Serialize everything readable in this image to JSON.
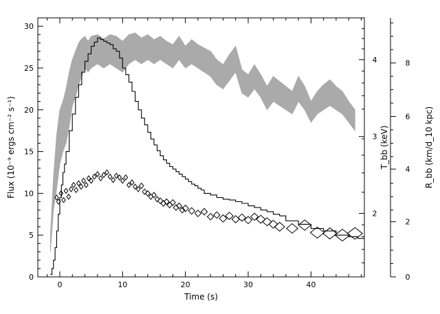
{
  "chart_data": {
    "type": "line",
    "title": "",
    "xlabel": "Time (s)",
    "ylabel": "Flux (10⁻⁹ ergs cm⁻² s⁻¹)",
    "ylabel_right_T": "T_bb (keV)",
    "ylabel_right_R": "R_bb (km/d_10 kpc)",
    "xlim": [
      -3.5,
      48.5
    ],
    "ylim": [
      0,
      31
    ],
    "x_ticks": [
      0,
      10,
      20,
      30,
      40
    ],
    "x_tick_labels": [
      "0",
      "10",
      "20",
      "30",
      "40"
    ],
    "y_ticks": [
      0,
      5,
      10,
      15,
      20,
      25,
      30
    ],
    "y_tick_labels": [
      "0",
      "5",
      "10",
      "15",
      "20",
      "25",
      "30"
    ],
    "T_axis": {
      "scale": "log",
      "ticks_keV": [
        2,
        3,
        4
      ],
      "tick_labels": [
        "2",
        "3",
        "4"
      ],
      "flux_at_tick": [
        7.6,
        16.8,
        26.0
      ]
    },
    "R_axis": {
      "ticks": [
        0,
        2,
        4,
        6,
        8
      ],
      "tick_labels": [
        "0",
        "2",
        "4",
        "6",
        "8"
      ],
      "flux_at_tick": [
        0,
        6.6,
        12.9,
        19.2,
        25.6
      ]
    },
    "series": [
      {
        "style": "histogram",
        "x": [
          -1.5,
          -1.25,
          -1.0,
          -0.75,
          -0.5,
          -0.25,
          0.0,
          0.25,
          0.5,
          0.75,
          1.0,
          1.5,
          2.0,
          2.5,
          3.0,
          3.5,
          4.0,
          4.5,
          5.0,
          5.5,
          6.0,
          6.5,
          7.0,
          7.5,
          8.0,
          8.5,
          9.0,
          9.5,
          10.0,
          10.5,
          11.0,
          11.5,
          12.0,
          12.5,
          13.0,
          13.5,
          14.0,
          14.5,
          15.0,
          15.5,
          16.0,
          16.5,
          17.0,
          17.5,
          18.0,
          18.5,
          19.0,
          19.5,
          20.0,
          20.5,
          21.0,
          21.5,
          22.0,
          22.5,
          23.0,
          24.0,
          25.0,
          26.0,
          27.0,
          28.0,
          29.0,
          30.0,
          31.0,
          32.0,
          33.0,
          34.0,
          35.0,
          36.0,
          38.0,
          40.0,
          42.0,
          44.0,
          46.0,
          47.5
        ],
        "y": [
          0.3,
          1.0,
          2.0,
          3.5,
          5.5,
          7.5,
          9.5,
          11.0,
          12.5,
          13.5,
          15.0,
          17.5,
          19.5,
          21.5,
          23.0,
          24.5,
          25.8,
          26.7,
          27.6,
          28.1,
          28.6,
          28.4,
          28.2,
          28.0,
          27.8,
          27.3,
          27.0,
          26.2,
          25.0,
          24.2,
          23.3,
          22.2,
          21.0,
          20.0,
          19.0,
          18.2,
          17.3,
          16.5,
          15.8,
          15.1,
          14.5,
          14.0,
          13.6,
          13.2,
          12.9,
          12.6,
          12.3,
          12.0,
          11.7,
          11.4,
          11.1,
          10.9,
          10.6,
          10.4,
          10.0,
          9.8,
          9.5,
          9.3,
          9.2,
          9.0,
          8.8,
          8.5,
          8.3,
          8.0,
          7.8,
          7.5,
          7.3,
          6.7,
          6.3,
          5.8,
          5.5,
          5.0,
          4.8,
          4.6
        ]
      },
      {
        "style": "band",
        "x": [
          -1.5,
          -1.0,
          -0.5,
          0.0,
          0.5,
          1.0,
          1.5,
          2.0,
          2.5,
          3.0,
          3.5,
          4.0,
          4.5,
          5.0,
          6.0,
          7.0,
          8.0,
          9.0,
          10.0,
          11.0,
          12.0,
          13.0,
          14.0,
          15.0,
          16.0,
          17.0,
          18.0,
          19.0,
          20.0,
          21.0,
          22.0,
          23.0,
          24.0,
          25.0,
          26.0,
          27.0,
          28.0,
          29.0,
          30.0,
          31.0,
          32.0,
          33.0,
          34.0,
          35.0,
          36.0,
          37.0,
          38.0,
          39.0,
          40.0,
          41.0,
          42.0,
          43.0,
          44.0,
          45.0,
          46.0,
          47.0
        ],
        "y_low": [
          3.0,
          8.0,
          10.5,
          13.5,
          15.0,
          16.0,
          18.0,
          20.5,
          21.5,
          23.0,
          24.0,
          25.0,
          24.5,
          25.0,
          25.5,
          25.0,
          25.5,
          25.0,
          24.5,
          25.5,
          26.0,
          25.5,
          26.0,
          25.5,
          26.0,
          25.5,
          25.0,
          26.0,
          25.0,
          25.5,
          25.0,
          24.5,
          24.0,
          23.0,
          22.5,
          23.5,
          24.5,
          22.0,
          21.5,
          22.5,
          21.5,
          20.0,
          21.0,
          20.5,
          20.0,
          19.5,
          21.0,
          20.0,
          18.5,
          19.5,
          20.0,
          20.5,
          20.0,
          19.5,
          18.5,
          17.5
        ],
        "y_high": [
          5.0,
          12.0,
          17.0,
          20.0,
          21.0,
          22.5,
          24.5,
          26.0,
          27.0,
          28.0,
          28.5,
          28.8,
          28.2,
          28.8,
          29.0,
          28.5,
          29.0,
          28.8,
          28.2,
          29.0,
          29.2,
          28.6,
          29.0,
          28.4,
          28.8,
          28.2,
          27.8,
          28.8,
          27.6,
          28.4,
          27.8,
          27.4,
          27.0,
          26.0,
          25.4,
          26.6,
          27.6,
          24.8,
          24.2,
          25.4,
          24.2,
          22.8,
          24.0,
          23.4,
          22.8,
          22.2,
          24.0,
          22.8,
          21.0,
          22.2,
          23.0,
          23.6,
          22.8,
          22.2,
          21.0,
          20.0
        ]
      },
      {
        "style": "diamonds",
        "x": [
          -0.5,
          -0.2,
          0.2,
          0.6,
          1.0,
          1.4,
          1.8,
          2.2,
          2.6,
          3.0,
          3.4,
          3.8,
          4.2,
          4.6,
          5.0,
          5.5,
          6.0,
          6.5,
          7.0,
          7.5,
          8.0,
          8.5,
          9.0,
          9.5,
          10.0,
          10.5,
          11.0,
          11.5,
          12.0,
          12.5,
          13.0,
          13.5,
          14.0,
          14.5,
          15.0,
          15.5,
          16.0,
          16.5,
          17.0,
          17.5,
          18.0,
          18.5,
          19.0,
          19.5,
          20.0,
          21.0,
          22.0,
          23.0,
          24.0,
          25.0,
          26.0,
          27.0,
          28.0,
          29.0,
          30.0,
          31.0,
          32.0,
          33.0,
          34.0,
          35.0,
          37.0,
          39.0,
          41.0,
          43.0,
          45.0,
          47.0
        ],
        "y": [
          9.5,
          9.0,
          10.0,
          9.2,
          10.3,
          9.6,
          10.5,
          11.0,
          10.4,
          11.2,
          10.8,
          11.5,
          11.0,
          11.8,
          11.5,
          12.0,
          12.3,
          11.8,
          12.2,
          12.5,
          12.0,
          11.6,
          12.1,
          11.9,
          11.5,
          11.9,
          11.0,
          11.3,
          10.8,
          10.5,
          10.9,
          10.2,
          10.0,
          9.6,
          9.8,
          9.3,
          9.1,
          8.8,
          9.0,
          8.6,
          8.9,
          8.3,
          8.5,
          8.0,
          8.2,
          7.9,
          7.6,
          7.8,
          7.2,
          7.4,
          7.0,
          7.3,
          6.9,
          7.1,
          6.8,
          7.2,
          6.9,
          6.6,
          6.3,
          6.0,
          5.8,
          6.2,
          5.3,
          5.2,
          5.0,
          5.2
        ],
        "marker_size_units": [
          0.3,
          0.3,
          0.3,
          0.3,
          0.3,
          0.3,
          0.3,
          0.3,
          0.3,
          0.3,
          0.3,
          0.3,
          0.3,
          0.3,
          0.3,
          0.3,
          0.3,
          0.3,
          0.3,
          0.3,
          0.3,
          0.3,
          0.3,
          0.3,
          0.3,
          0.3,
          0.3,
          0.3,
          0.3,
          0.3,
          0.35,
          0.35,
          0.35,
          0.35,
          0.35,
          0.35,
          0.4,
          0.4,
          0.4,
          0.4,
          0.4,
          0.4,
          0.4,
          0.4,
          0.5,
          0.5,
          0.5,
          0.5,
          0.5,
          0.5,
          0.6,
          0.6,
          0.6,
          0.6,
          0.6,
          0.6,
          0.7,
          0.7,
          0.7,
          0.8,
          0.9,
          1.0,
          1.1,
          1.1,
          1.2,
          1.2
        ]
      }
    ],
    "grid": false,
    "legend": "none",
    "colors": {
      "histogram": "#000000",
      "band": "#aaaaaa",
      "diamonds": "#000000"
    }
  }
}
